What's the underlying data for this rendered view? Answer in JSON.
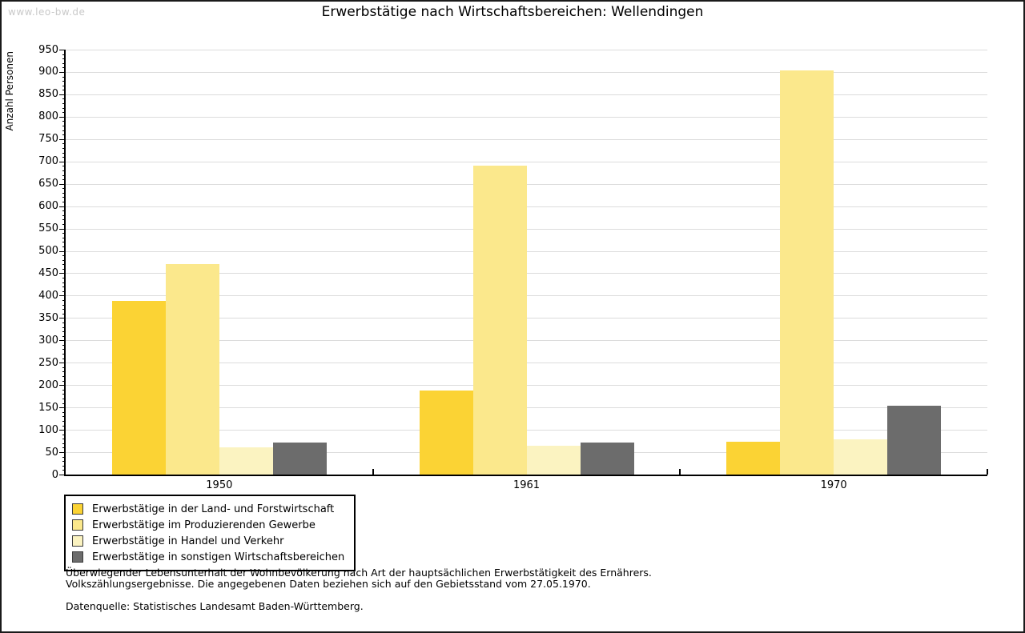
{
  "watermark": "www.leo-bw.de",
  "title": "Erwerbstätige nach Wirtschaftsbereichen: Wellendingen",
  "footnotes": {
    "line1": "Überwiegender Lebensunterhalt der Wohnbevölkerung nach Art der hauptsächlichen Erwerbstätigkeit des Ernährers.",
    "line2": "Volkszählungsergebnisse. Die angegebenen Daten beziehen sich auf den Gebietsstand vom 27.05.1970.",
    "source": "Datenquelle: Statistisches Landesamt Baden-Württemberg."
  },
  "chart_data": {
    "type": "bar",
    "title": "Erwerbstätige nach Wirtschaftsbereichen: Wellendingen",
    "categories": [
      "1950",
      "1961",
      "1970"
    ],
    "series": [
      {
        "name": "Erwerbstätige in der Land- und Forstwirtschaft",
        "color": "#FBD334",
        "values": [
          389,
          187,
          74
        ]
      },
      {
        "name": "Erwerbstätige im Produzierenden Gewerbe",
        "color": "#FBE88C",
        "values": [
          470,
          690,
          903
        ]
      },
      {
        "name": "Erwerbstätige in Handel und Verkehr",
        "color": "#FBF3C1",
        "values": [
          61,
          64,
          79
        ]
      },
      {
        "name": "Erwerbstätige in sonstigen Wirtschaftsbereichen",
        "color": "#6C6C6C",
        "values": [
          72,
          72,
          154
        ]
      }
    ],
    "xlabel": "",
    "ylabel": "Anzahl Personen",
    "ylim": [
      0,
      950
    ],
    "ytick_step": 50,
    "ytick_minor_step": 10,
    "grid": true,
    "legend_position": "bottom-left",
    "colors": {
      "grid": "#DCDCDC",
      "axis": "#000000",
      "watermark": "#C9C9C9",
      "background": "#FFFFFF"
    }
  }
}
